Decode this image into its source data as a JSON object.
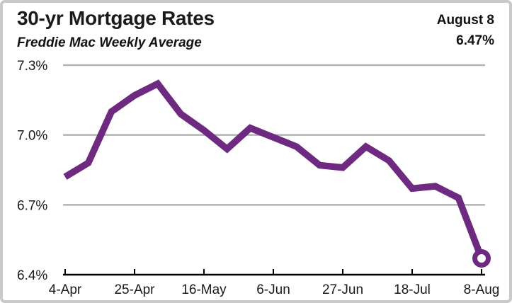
{
  "header": {
    "title": "30-yr Mortgage Rates",
    "subtitle": "Freddie Mac Weekly Average",
    "annotation_date": "August 8",
    "annotation_value": "6.47%"
  },
  "chart_data": {
    "type": "line",
    "title": "30-yr Mortgage Rates",
    "subtitle": "Freddie Mac Weekly Average",
    "x": [
      "4-Apr",
      "11-Apr",
      "18-Apr",
      "25-Apr",
      "2-May",
      "9-May",
      "16-May",
      "23-May",
      "30-May",
      "6-Jun",
      "13-Jun",
      "20-Jun",
      "27-Jun",
      "4-Jul",
      "11-Jul",
      "18-Jul",
      "25-Jul",
      "1-Aug",
      "8-Aug"
    ],
    "values": [
      6.82,
      6.88,
      7.1,
      7.17,
      7.22,
      7.09,
      7.02,
      6.94,
      7.03,
      6.99,
      6.95,
      6.87,
      6.86,
      6.95,
      6.89,
      6.77,
      6.78,
      6.73,
      6.47
    ],
    "x_tick_labels": [
      "4-Apr",
      "25-Apr",
      "16-May",
      "6-Jun",
      "27-Jun",
      "18-Jul",
      "8-Aug"
    ],
    "y_ticks": [
      6.4,
      6.7,
      7.0,
      7.3
    ],
    "y_tick_labels": [
      "6.4%",
      "6.7%",
      "7.0%",
      "7.3%"
    ],
    "ylim": [
      6.4,
      7.3
    ],
    "xlabel": "",
    "ylabel": "",
    "grid": "horizontal",
    "legend": "none",
    "last_point_marker": "open-circle",
    "last_point_label": "6.47%",
    "line_color": "#6e2a80",
    "gridline_color": "#b3b3b3",
    "axis_color": "#000000",
    "text_color": "#1a1a1a"
  }
}
